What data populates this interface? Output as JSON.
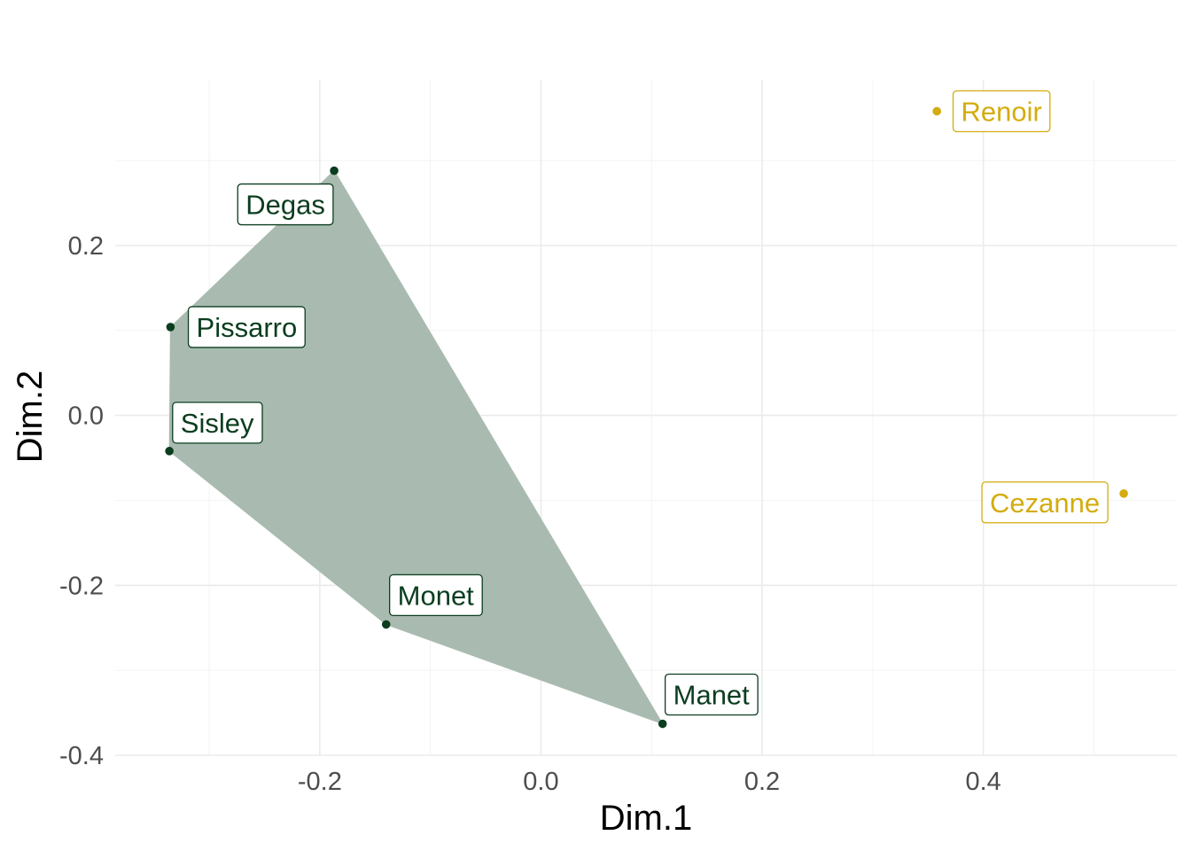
{
  "chart_data": {
    "type": "scatter",
    "xlabel": "Dim.1",
    "ylabel": "Dim.2",
    "xlim": [
      -0.385,
      0.575
    ],
    "ylim": [
      -0.4,
      0.395
    ],
    "x_ticks": [
      -0.2,
      0.0,
      0.2,
      0.4
    ],
    "x_tick_labels": [
      "-0.2",
      "0.0",
      "0.2",
      "0.4"
    ],
    "y_ticks": [
      -0.4,
      -0.2,
      0.0,
      0.2
    ],
    "y_tick_labels": [
      "-0.4",
      "-0.2",
      "0.0",
      "0.2"
    ],
    "grid": true,
    "legend": "none",
    "colors": {
      "group_1": "#0b3d1f",
      "group_1_hull": "#a9bbb0",
      "group_2": "#d4ac0d",
      "grid_major": "#ebebeb",
      "grid_minor": "#f2f2f2"
    },
    "series": [
      {
        "color": "#0b3d1f",
        "hull": true,
        "points": [
          {
            "label": "Degas",
            "x": -0.187,
            "y": 0.288
          },
          {
            "label": "Pissarro",
            "x": -0.335,
            "y": 0.104
          },
          {
            "label": "Sisley",
            "x": -0.336,
            "y": -0.042
          },
          {
            "label": "Monet",
            "x": -0.14,
            "y": -0.246
          },
          {
            "label": "Manet",
            "x": 0.11,
            "y": -0.363
          }
        ]
      },
      {
        "color": "#d4ac0d",
        "hull": false,
        "points": [
          {
            "label": "Renoir",
            "x": 0.358,
            "y": 0.358
          },
          {
            "label": "Cezanne",
            "x": 0.527,
            "y": -0.092
          }
        ]
      }
    ]
  }
}
